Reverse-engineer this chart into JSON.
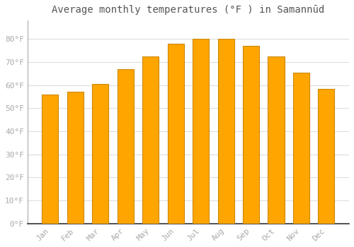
{
  "title": "Average monthly temperatures (°F ) in Samannūd",
  "months": [
    "Jan",
    "Feb",
    "Mar",
    "Apr",
    "May",
    "Jun",
    "Jul",
    "Aug",
    "Sep",
    "Oct",
    "Nov",
    "Dec"
  ],
  "values": [
    56,
    57,
    60.5,
    67,
    72.5,
    78,
    80,
    80,
    77,
    72.5,
    65.5,
    58.5
  ],
  "bar_color": "#FFA500",
  "bar_edge_color": "#CC8800",
  "background_color": "#ffffff",
  "grid_color": "#dddddd",
  "yticks": [
    0,
    10,
    20,
    30,
    40,
    50,
    60,
    70,
    80
  ],
  "ytick_labels": [
    "0°F",
    "10°F",
    "20°F",
    "30°F",
    "40°F",
    "50°F",
    "60°F",
    "70°F",
    "80°F"
  ],
  "ylim": [
    0,
    88
  ],
  "title_fontsize": 10,
  "tick_fontsize": 8,
  "tick_color": "#aaaaaa",
  "font_family": "monospace"
}
